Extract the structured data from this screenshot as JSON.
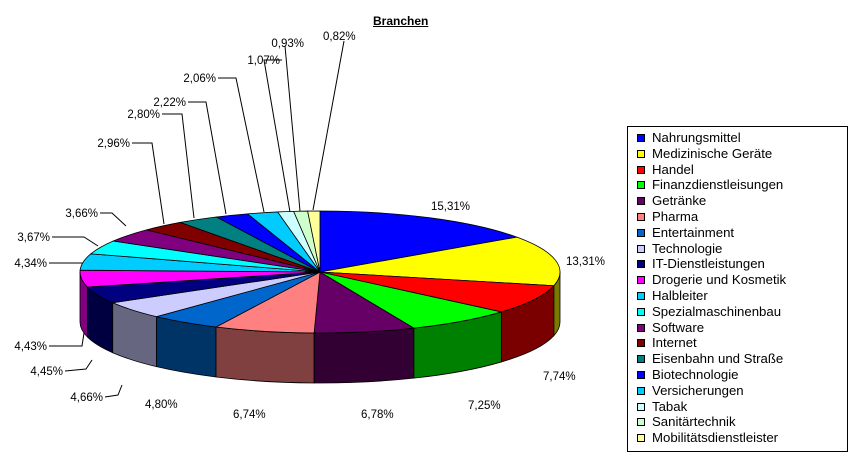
{
  "chart_data": {
    "type": "pie",
    "title": "Branchen",
    "legend_position": "right",
    "slices": [
      {
        "name": "Nahrungsmittel",
        "value": 15.31,
        "label": "15,31%",
        "color": "#0000ff",
        "side": "#00006a"
      },
      {
        "name": "Medizinische Geräte",
        "value": 13.31,
        "label": "13,31%",
        "color": "#ffff00",
        "side": "#7a7a00"
      },
      {
        "name": "Handel",
        "value": 7.74,
        "label": "7,74%",
        "color": "#ff0000",
        "side": "#7a0000"
      },
      {
        "name": "Finanzdienstleisungen",
        "value": 7.25,
        "label": "7,25%",
        "color": "#00ff00",
        "side": "#008000"
      },
      {
        "name": "Getränke",
        "value": 6.78,
        "label": "6,78%",
        "color": "#660066",
        "side": "#330033"
      },
      {
        "name": "Pharma",
        "value": 6.74,
        "label": "6,74%",
        "color": "#ff8080",
        "side": "#804040"
      },
      {
        "name": "Entertainment",
        "value": 4.8,
        "label": "4,80%",
        "color": "#0066cc",
        "side": "#003366"
      },
      {
        "name": "Technologie",
        "value": 4.66,
        "label": "4,66%",
        "color": "#ccccff",
        "side": "#666680"
      },
      {
        "name": "IT-Dienstleistungen",
        "value": 4.45,
        "label": "4,45%",
        "color": "#000080",
        "side": "#000040"
      },
      {
        "name": "Drogerie und Kosmetik",
        "value": 4.43,
        "label": "4,43%",
        "color": "#ff00ff",
        "side": "#800080"
      },
      {
        "name": "Halbleiter",
        "value": 4.34,
        "label": "4,34%",
        "color": "#00ccff",
        "side": "#006680"
      },
      {
        "name": "Spezialmaschinenbau",
        "value": 3.67,
        "label": "3,67%",
        "color": "#00ffff",
        "side": "#008080"
      },
      {
        "name": "Software",
        "value": 3.66,
        "label": "3,66%",
        "color": "#800080",
        "side": "#400040"
      },
      {
        "name": "Internet",
        "value": 2.96,
        "label": "2,96%",
        "color": "#800000",
        "side": "#400000"
      },
      {
        "name": "Eisenbahn und Straße",
        "value": 2.8,
        "label": "2,80%",
        "color": "#008080",
        "side": "#004040"
      },
      {
        "name": "Biotechnologie",
        "value": 2.22,
        "label": "2,22%",
        "color": "#0000ff",
        "side": "#00006a"
      },
      {
        "name": "Versicherungen",
        "value": 2.06,
        "label": "2,06%",
        "color": "#00ccff",
        "side": "#006680"
      },
      {
        "name": "Tabak",
        "value": 1.07,
        "label": "1,07%",
        "color": "#ccffff",
        "side": "#668080"
      },
      {
        "name": "Sanitärtechnik",
        "value": 0.93,
        "label": "0,93%",
        "color": "#ccffcc",
        "side": "#668066"
      },
      {
        "name": "Mobilitätsdienstleister",
        "value": 0.82,
        "label": "0,82%",
        "color": "#ffff99",
        "side": "#80804c"
      }
    ]
  }
}
